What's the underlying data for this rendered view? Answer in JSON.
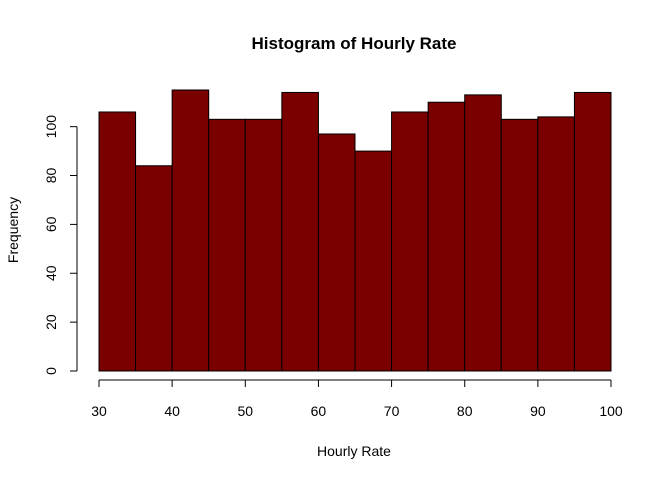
{
  "chart_data": {
    "type": "bar",
    "title": "Histogram of Hourly Rate",
    "xlabel": "Hourly Rate",
    "ylabel": "Frequency",
    "bin_edges": [
      30,
      35,
      40,
      45,
      50,
      55,
      60,
      65,
      70,
      75,
      80,
      85,
      90,
      95,
      100
    ],
    "values": [
      106,
      84,
      115,
      103,
      103,
      114,
      97,
      90,
      106,
      110,
      113,
      103,
      104,
      114
    ],
    "xlim": [
      30,
      100
    ],
    "ylim": [
      0,
      115
    ],
    "x_ticks": [
      30,
      40,
      50,
      60,
      70,
      80,
      90,
      100
    ],
    "y_ticks": [
      0,
      20,
      40,
      60,
      80,
      100
    ],
    "bar_color": "#7a0000",
    "grid": false,
    "legend": "none"
  }
}
